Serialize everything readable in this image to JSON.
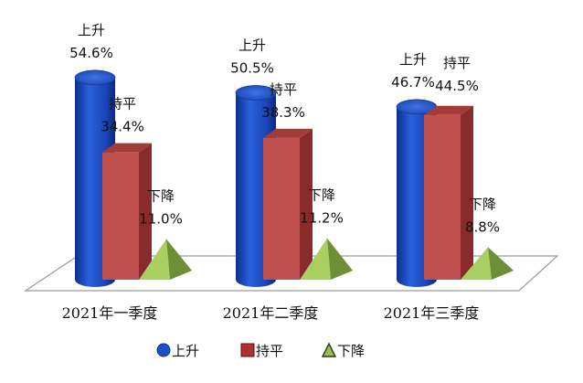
{
  "chart_data": {
    "type": "bar",
    "categories": [
      "2021年一季度",
      "2021年二季度",
      "2021年三季度"
    ],
    "series": [
      {
        "name": "上升",
        "values": [
          54.6,
          50.5,
          46.7
        ],
        "labels": [
          "54.6%",
          "50.5%",
          "46.7%"
        ],
        "color": "#1f4fc4",
        "shape": "cylinder"
      },
      {
        "name": "持平",
        "values": [
          34.4,
          38.3,
          44.5
        ],
        "labels": [
          "34.4%",
          "38.3%",
          "44.5%"
        ],
        "color": "#c0504d",
        "shape": "box"
      },
      {
        "name": "下降",
        "values": [
          11.0,
          11.2,
          8.8
        ],
        "labels": [
          "11.0%",
          "11.2%",
          "8.8%"
        ],
        "color": "#9bbb59",
        "shape": "pyramid"
      }
    ],
    "legend_position": "bottom",
    "grid": false
  }
}
